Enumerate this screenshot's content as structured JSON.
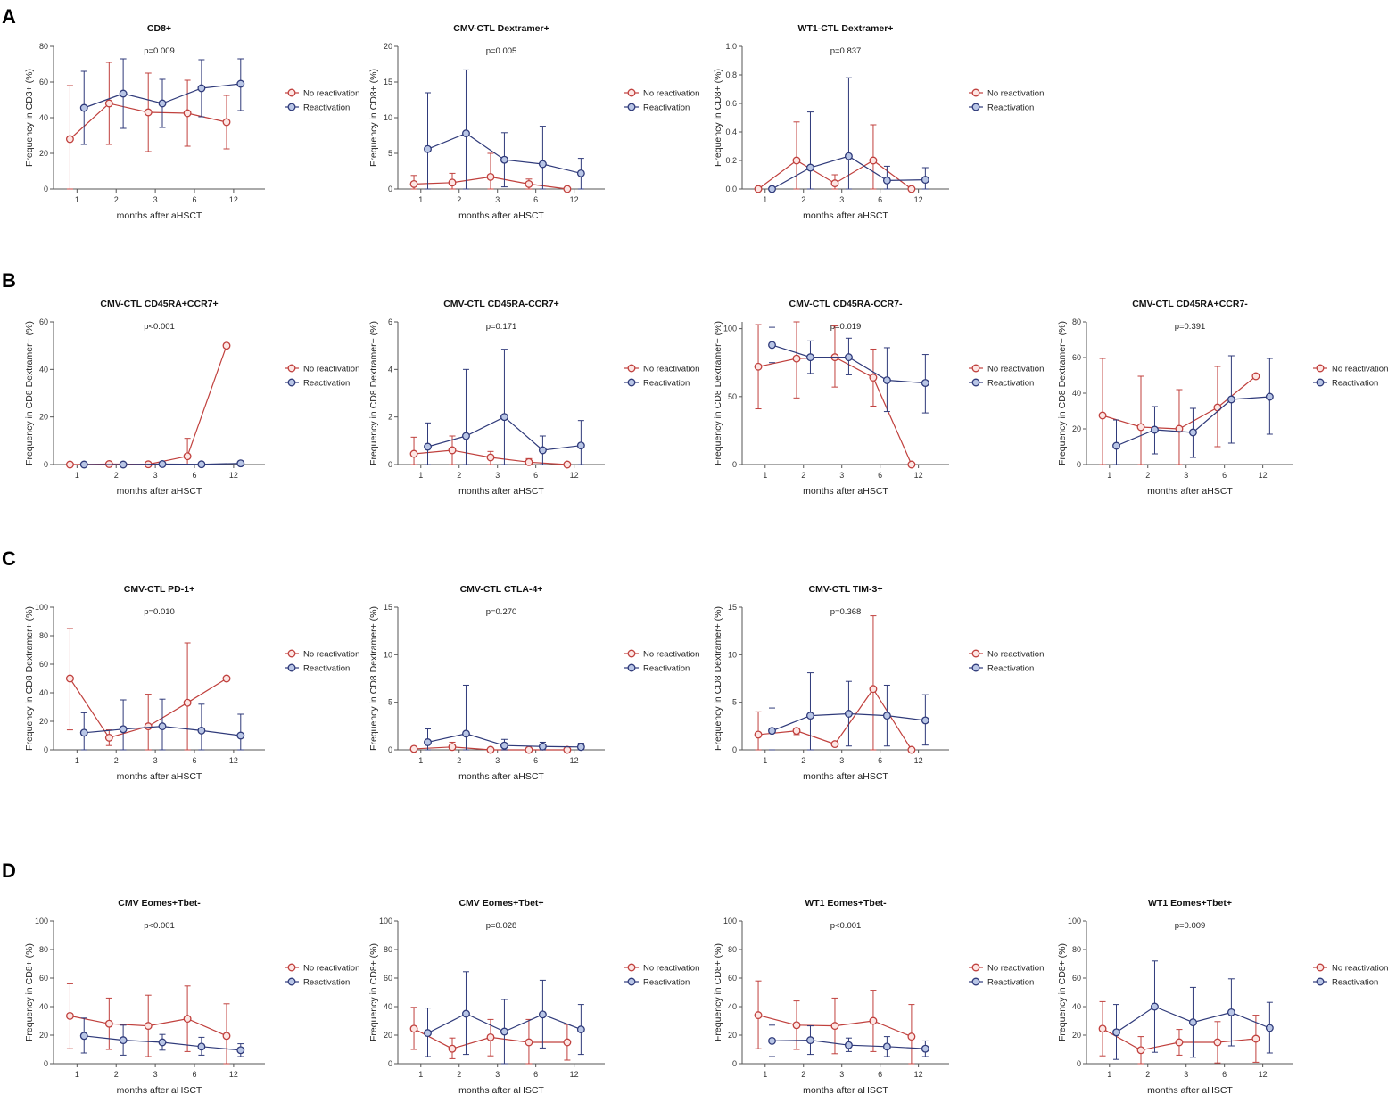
{
  "colors": {
    "no_reactivation": "#c0403d",
    "reactivation": "#2f3a7a",
    "marker_fill_red": "#fde6e4",
    "marker_fill_blue": "#b9c6e6"
  },
  "panel_labels": [
    "A",
    "B",
    "C",
    "D"
  ],
  "chart_data": [
    {
      "type": "line",
      "panel": "A",
      "title": "CD8+",
      "pvalue": "p=0.009",
      "ylabel": "Frequency in CD3+ (%)",
      "xlabel": "months after aHSCT",
      "categories": [
        "1",
        "2",
        "3",
        "6",
        "12"
      ],
      "ylim": [
        0,
        80
      ],
      "yticks": [
        0,
        20,
        40,
        60,
        80
      ],
      "series": [
        {
          "name": "No reactivation",
          "values": [
            28,
            48,
            43,
            42.5,
            37.5
          ],
          "err_hi": [
            58,
            71,
            65,
            61,
            52.5
          ],
          "err_lo": [
            0,
            25,
            21,
            24,
            22.5
          ]
        },
        {
          "name": "Reactivation",
          "values": [
            45.5,
            53.5,
            48,
            56.5,
            59
          ],
          "err_hi": [
            66,
            73,
            61.5,
            72.5,
            73
          ],
          "err_lo": [
            25,
            34,
            34.5,
            40.5,
            44
          ]
        }
      ]
    },
    {
      "type": "line",
      "panel": "A",
      "title": "CMV-CTL Dextramer+",
      "pvalue": "p=0.005",
      "ylabel": "Frequency in CD8+ (%)",
      "xlabel": "months after aHSCT",
      "categories": [
        "1",
        "2",
        "3",
        "6",
        "12"
      ],
      "ylim": [
        0,
        20
      ],
      "yticks": [
        0,
        5,
        10,
        15,
        20
      ],
      "series": [
        {
          "name": "No reactivation",
          "values": [
            0.7,
            0.9,
            1.7,
            0.7,
            0
          ],
          "err_hi": [
            1.9,
            2.2,
            5,
            1.4,
            0
          ],
          "err_lo": [
            0,
            0,
            0,
            0,
            0
          ]
        },
        {
          "name": "Reactivation",
          "values": [
            5.6,
            7.8,
            4.1,
            3.5,
            2.2
          ],
          "err_hi": [
            13.5,
            16.7,
            7.9,
            8.8,
            4.3
          ],
          "err_lo": [
            0,
            0,
            0.3,
            0,
            0
          ]
        }
      ]
    },
    {
      "type": "line",
      "panel": "A",
      "title": "WT1-CTL Dextramer+",
      "pvalue": "p=0.837",
      "ylabel": "Frequency in CD8+ (%)",
      "xlabel": "months after aHSCT",
      "categories": [
        "1",
        "2",
        "3",
        "6",
        "12"
      ],
      "ylim": [
        0,
        1.0
      ],
      "yticks": [
        0,
        0.2,
        0.4,
        0.6,
        0.8,
        1.0
      ],
      "series": [
        {
          "name": "No reactivation",
          "values": [
            0,
            0.2,
            0.04,
            0.2,
            0
          ],
          "err_hi": [
            0,
            0.47,
            0.1,
            0.45,
            0
          ],
          "err_lo": [
            0,
            0,
            0,
            0,
            0
          ]
        },
        {
          "name": "Reactivation",
          "values": [
            0,
            0.15,
            0.23,
            0.06,
            0.065
          ],
          "err_hi": [
            0,
            0.54,
            0.78,
            0.16,
            0.15
          ],
          "err_lo": [
            0,
            0,
            0,
            0,
            0
          ]
        }
      ]
    },
    {
      "type": "line",
      "panel": "B",
      "title": "CMV-CTL CD45RA+CCR7+",
      "pvalue": "p<0.001",
      "ylabel": "Frequency in CD8 Dextramer+ (%)",
      "xlabel": "months after aHSCT",
      "categories": [
        "1",
        "2",
        "3",
        "6",
        "12"
      ],
      "ylim": [
        0,
        60
      ],
      "yticks": [
        0,
        20,
        40,
        60
      ],
      "series": [
        {
          "name": "No reactivation",
          "values": [
            0,
            0.2,
            0.1,
            3.5,
            50
          ],
          "err_hi": [
            0,
            0.5,
            0.3,
            11,
            50
          ],
          "err_lo": [
            0,
            0,
            0,
            0,
            50
          ]
        },
        {
          "name": "Reactivation",
          "values": [
            0,
            0,
            0.2,
            0.1,
            0.5
          ],
          "err_hi": [
            0,
            0,
            0.4,
            0.3,
            1
          ],
          "err_lo": [
            0,
            0,
            0,
            0,
            0
          ]
        }
      ]
    },
    {
      "type": "line",
      "panel": "B",
      "title": "CMV-CTL CD45RA-CCR7+",
      "pvalue": "p=0.171",
      "ylabel": "Frequency in CD8 Dextramer+ (%)",
      "xlabel": "months after aHSCT",
      "categories": [
        "1",
        "2",
        "3",
        "6",
        "12"
      ],
      "ylim": [
        0,
        6
      ],
      "yticks": [
        0,
        2,
        4,
        6
      ],
      "series": [
        {
          "name": "No reactivation",
          "values": [
            0.45,
            0.6,
            0.3,
            0.1,
            0
          ],
          "err_hi": [
            1.15,
            1.2,
            0.55,
            0.25,
            0
          ],
          "err_lo": [
            0,
            0,
            0,
            0,
            0
          ]
        },
        {
          "name": "Reactivation",
          "values": [
            0.75,
            1.2,
            2,
            0.6,
            0.8
          ],
          "err_hi": [
            1.75,
            4,
            4.85,
            1.2,
            1.85
          ],
          "err_lo": [
            0,
            0,
            0,
            0,
            0
          ]
        }
      ]
    },
    {
      "type": "line",
      "panel": "B",
      "title": "CMV-CTL CD45RA-CCR7-",
      "pvalue": "p=0.019",
      "ylabel": "Frequency in CD8 Dextramer+ (%)",
      "xlabel": "months after aHSCT",
      "categories": [
        "1",
        "2",
        "3",
        "6",
        "12"
      ],
      "ylim": [
        0,
        105
      ],
      "yticks": [
        0,
        50,
        100
      ],
      "series": [
        {
          "name": "No reactivation",
          "values": [
            72,
            78,
            79,
            64,
            0
          ],
          "err_hi": [
            103,
            105,
            102,
            85,
            0
          ],
          "err_lo": [
            41,
            49,
            57,
            43,
            0
          ]
        },
        {
          "name": "Reactivation",
          "values": [
            88,
            79,
            79,
            62,
            60
          ],
          "err_hi": [
            101,
            91,
            93,
            86,
            81
          ],
          "err_lo": [
            75,
            67,
            66,
            39,
            38
          ]
        }
      ]
    },
    {
      "type": "line",
      "panel": "B",
      "title": "CMV-CTL CD45RA+CCR7-",
      "pvalue": "p=0.391",
      "ylabel": "Frequency in CD8 Dextramer+ (%)",
      "xlabel": "months after aHSCT",
      "categories": [
        "1",
        "2",
        "3",
        "6",
        "12"
      ],
      "ylim": [
        0,
        80
      ],
      "yticks": [
        0,
        20,
        40,
        60,
        80
      ],
      "series": [
        {
          "name": "No reactivation",
          "values": [
            27.5,
            21,
            20,
            32,
            49.5
          ],
          "err_hi": [
            59.5,
            49.5,
            42,
            55,
            49.5
          ],
          "err_lo": [
            0,
            0,
            0,
            10,
            49.5
          ]
        },
        {
          "name": "Reactivation",
          "values": [
            10.5,
            19.5,
            18,
            36.5,
            38
          ],
          "err_hi": [
            25,
            32.5,
            31.5,
            61,
            59.5
          ],
          "err_lo": [
            0,
            6,
            4,
            12,
            17
          ]
        }
      ]
    },
    {
      "type": "line",
      "panel": "C",
      "title": "CMV-CTL PD-1+",
      "pvalue": "p=0.010",
      "ylabel": "Frequency in CD8 Dextramer+ (%)",
      "xlabel": "months after aHSCT",
      "categories": [
        "1",
        "2",
        "3",
        "6",
        "12"
      ],
      "ylim": [
        0,
        100
      ],
      "yticks": [
        0,
        20,
        40,
        60,
        80,
        100
      ],
      "series": [
        {
          "name": "No reactivation",
          "values": [
            50,
            8.5,
            16.5,
            33,
            50
          ],
          "err_hi": [
            85,
            14,
            39,
            75,
            50
          ],
          "err_lo": [
            14,
            3,
            0,
            0,
            50
          ]
        },
        {
          "name": "Reactivation",
          "values": [
            12,
            14.5,
            16.5,
            13.5,
            10
          ],
          "err_hi": [
            26,
            35,
            35.5,
            32,
            25
          ],
          "err_lo": [
            0,
            0,
            0,
            0,
            0
          ]
        }
      ]
    },
    {
      "type": "line",
      "panel": "C",
      "title": "CMV-CTL CTLA-4+",
      "pvalue": "p=0.270",
      "ylabel": "Frequency in CD8 Dextramer+ (%)",
      "xlabel": "months after aHSCT",
      "categories": [
        "1",
        "2",
        "3",
        "6",
        "12"
      ],
      "ylim": [
        0,
        15
      ],
      "yticks": [
        0,
        5,
        10,
        15
      ],
      "series": [
        {
          "name": "No reactivation",
          "values": [
            0.1,
            0.3,
            0,
            0,
            0
          ],
          "err_hi": [
            0.2,
            0.8,
            0,
            0,
            0
          ],
          "err_lo": [
            0,
            0,
            0,
            0,
            0
          ]
        },
        {
          "name": "Reactivation",
          "values": [
            0.8,
            1.7,
            0.45,
            0.35,
            0.3
          ],
          "err_hi": [
            2.2,
            6.8,
            1.1,
            0.8,
            0.7
          ],
          "err_lo": [
            0,
            0,
            0,
            0,
            0
          ]
        }
      ]
    },
    {
      "type": "line",
      "panel": "C",
      "title": "CMV-CTL TIM-3+",
      "pvalue": "p=0.368",
      "ylabel": "Frequency in CD8 Dextramer+ (%)",
      "xlabel": "months after aHSCT",
      "categories": [
        "1",
        "2",
        "3",
        "6",
        "12"
      ],
      "ylim": [
        0,
        15
      ],
      "yticks": [
        0,
        5,
        10,
        15
      ],
      "series": [
        {
          "name": "No reactivation",
          "values": [
            1.6,
            2,
            0.6,
            6.4,
            0
          ],
          "err_hi": [
            4,
            2.3,
            0.8,
            14.1,
            0
          ],
          "err_lo": [
            0,
            1.6,
            0.4,
            0,
            0
          ]
        },
        {
          "name": "Reactivation",
          "values": [
            2,
            3.6,
            3.8,
            3.6,
            3.1
          ],
          "err_hi": [
            4.4,
            8.1,
            7.2,
            6.8,
            5.8
          ],
          "err_lo": [
            0,
            0,
            0.4,
            0.4,
            0.5
          ]
        }
      ]
    },
    {
      "type": "line",
      "panel": "D",
      "title": "CMV Eomes+Tbet-",
      "pvalue": "p<0.001",
      "ylabel": "Frequency in CD8+ (%)",
      "xlabel": "months after aHSCT",
      "categories": [
        "1",
        "2",
        "3",
        "6",
        "12"
      ],
      "ylim": [
        0,
        100
      ],
      "yticks": [
        0,
        20,
        40,
        60,
        80,
        100
      ],
      "series": [
        {
          "name": "No reactivation",
          "values": [
            33.5,
            28,
            26.5,
            31.5,
            19.5
          ],
          "err_hi": [
            56,
            46,
            48,
            54.5,
            42
          ],
          "err_lo": [
            10.5,
            10,
            5,
            8.5,
            0
          ]
        },
        {
          "name": "Reactivation",
          "values": [
            19.5,
            16.5,
            15,
            12,
            9.5
          ],
          "err_hi": [
            32,
            27,
            20.5,
            18.5,
            14
          ],
          "err_lo": [
            7.5,
            6,
            9.5,
            6,
            5
          ]
        }
      ]
    },
    {
      "type": "line",
      "panel": "D",
      "title": "CMV Eomes+Tbet+",
      "pvalue": "p=0.028",
      "ylabel": "Frequency in CD8+ (%)",
      "xlabel": "months after aHSCT",
      "categories": [
        "1",
        "2",
        "3",
        "6",
        "12"
      ],
      "ylim": [
        0,
        100
      ],
      "yticks": [
        0,
        20,
        40,
        60,
        80,
        100
      ],
      "series": [
        {
          "name": "No reactivation",
          "values": [
            24.5,
            10.5,
            18.5,
            15,
            15
          ],
          "err_hi": [
            39.5,
            18,
            31,
            31,
            27.5
          ],
          "err_lo": [
            10,
            3.5,
            5.5,
            0,
            2.5
          ]
        },
        {
          "name": "Reactivation",
          "values": [
            21.5,
            35,
            22.5,
            34.5,
            24
          ],
          "err_hi": [
            39,
            64.5,
            45,
            58.5,
            41.5
          ],
          "err_lo": [
            5,
            6.5,
            0,
            11,
            6.5
          ]
        }
      ]
    },
    {
      "type": "line",
      "panel": "D",
      "title": "WT1 Eomes+Tbet-",
      "pvalue": "p<0.001",
      "ylabel": "Frequency in CD8+ (%)",
      "xlabel": "months after aHSCT",
      "categories": [
        "1",
        "2",
        "3",
        "6",
        "12"
      ],
      "ylim": [
        0,
        100
      ],
      "yticks": [
        0,
        20,
        40,
        60,
        80,
        100
      ],
      "series": [
        {
          "name": "No reactivation",
          "values": [
            34,
            27,
            26.5,
            30,
            19
          ],
          "err_hi": [
            58,
            44,
            46,
            51.5,
            41.5
          ],
          "err_lo": [
            10.5,
            10,
            7,
            8.5,
            0
          ]
        },
        {
          "name": "Reactivation",
          "values": [
            16,
            16.5,
            13,
            12,
            10.5
          ],
          "err_hi": [
            27,
            26.5,
            18,
            19,
            16
          ],
          "err_lo": [
            5,
            6.5,
            8.5,
            5,
            5
          ]
        }
      ]
    },
    {
      "type": "line",
      "panel": "D",
      "title": "WT1 Eomes+Tbet+",
      "pvalue": "p=0.009",
      "ylabel": "Frequency in CD8+ (%)",
      "xlabel": "months after aHSCT",
      "categories": [
        "1",
        "2",
        "3",
        "6",
        "12"
      ],
      "ylim": [
        0,
        100
      ],
      "yticks": [
        0,
        20,
        40,
        60,
        80,
        100
      ],
      "series": [
        {
          "name": "No reactivation",
          "values": [
            24.5,
            9.5,
            15,
            15,
            17.5
          ],
          "err_hi": [
            43.5,
            19,
            24,
            29.5,
            34
          ],
          "err_lo": [
            5.5,
            0,
            6,
            0.5,
            1
          ]
        },
        {
          "name": "Reactivation",
          "values": [
            22,
            40,
            29,
            36,
            25
          ],
          "err_hi": [
            41.5,
            72,
            53.5,
            59.5,
            43
          ],
          "err_lo": [
            3,
            8,
            4.5,
            12.5,
            7.5
          ]
        }
      ]
    }
  ]
}
